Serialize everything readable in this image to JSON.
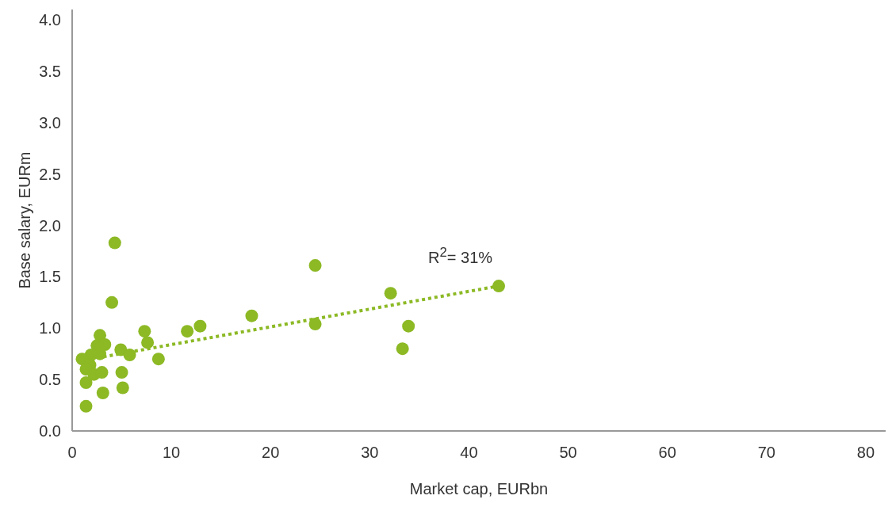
{
  "chart_data": {
    "type": "scatter",
    "xlabel": "Market cap, EURbn",
    "ylabel": "Base salary, EURm",
    "xlim": [
      0,
      82
    ],
    "xticks": [
      0,
      10,
      20,
      30,
      40,
      50,
      60,
      70,
      80
    ],
    "ylim": [
      0,
      4.1
    ],
    "yticks": [
      {
        "value": 0,
        "label": "0.0"
      },
      0.5,
      {
        "value": 1,
        "label": "1.0"
      },
      1.5,
      {
        "value": 2,
        "label": "2.0"
      },
      2.5,
      {
        "value": 3,
        "label": "3.0"
      },
      3.5,
      {
        "value": 4,
        "label": "4.0"
      }
    ],
    "marker": "circle",
    "annotations": [
      "R$^{2}$= 31%"
    ],
    "series": [
      {
        "color": "#8cb924",
        "x": [
          4.3,
          4.0,
          2.8,
          2.5,
          3.3,
          1.9,
          2.8,
          1.0,
          1.8,
          1.4,
          2.2,
          3.0,
          1.4,
          3.1,
          1.4,
          4.9,
          5.8,
          5.0,
          5.1,
          7.3,
          7.6,
          8.7,
          11.6,
          12.9,
          18.1,
          24.5,
          24.5,
          32.1,
          33.9,
          33.3,
          43.0
        ],
        "values": [
          1.83,
          1.25,
          0.93,
          0.83,
          0.84,
          0.74,
          0.75,
          0.7,
          0.64,
          0.6,
          0.55,
          0.57,
          0.47,
          0.37,
          0.24,
          0.79,
          0.74,
          0.57,
          0.42,
          0.97,
          0.86,
          0.7,
          0.97,
          1.02,
          1.12,
          1.61,
          1.04,
          1.34,
          1.02,
          0.8,
          1.41
        ]
      },
      {
        "type": "line",
        "color": "#8cb924",
        "line_style": "dotted",
        "marker": "none",
        "x": [
          1.9,
          43.0
        ],
        "values": [
          0.7,
          1.41
        ]
      }
    ]
  }
}
